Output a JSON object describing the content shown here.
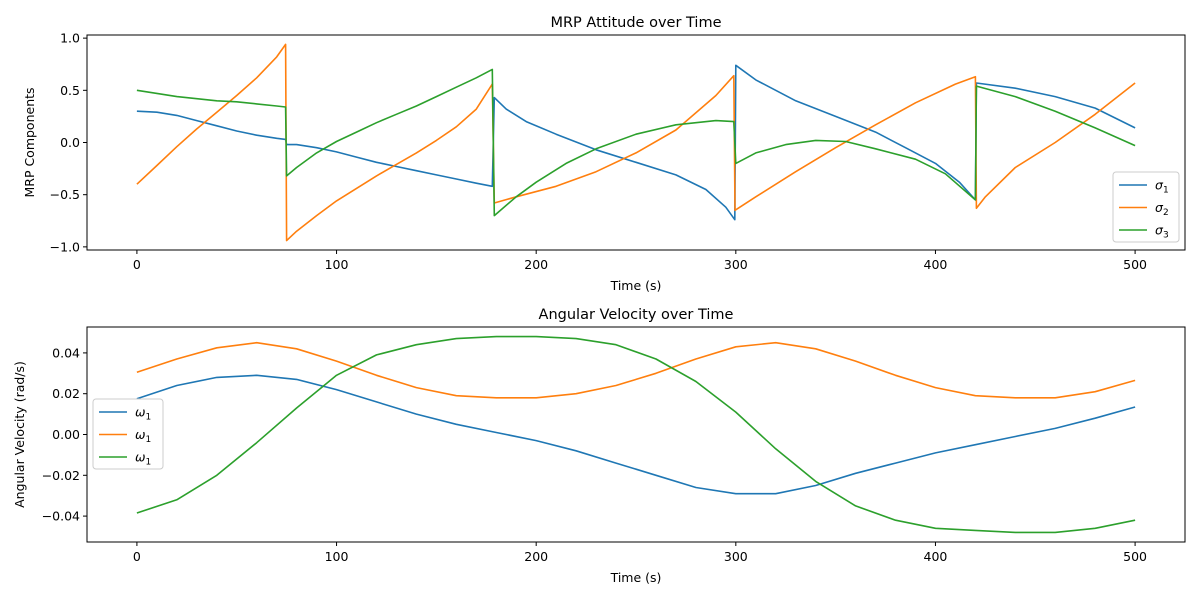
{
  "chart_data": [
    {
      "type": "line",
      "title": "MRP Attitude over Time",
      "xlabel": "Time (s)",
      "ylabel": "MRP Components",
      "xlim": [
        -25,
        525
      ],
      "ylim": [
        -1.03,
        1.03
      ],
      "xticks": [
        0,
        100,
        200,
        300,
        400,
        500
      ],
      "xtick_labels": [
        "0",
        "100",
        "200",
        "300",
        "400",
        "500"
      ],
      "yticks": [
        -1.0,
        -0.5,
        0.0,
        0.5,
        1.0
      ],
      "ytick_labels": [
        "−1.0",
        "−0.5",
        "0.0",
        "0.5",
        "1.0"
      ],
      "grid": false,
      "legend_position": "lower-right",
      "series": [
        {
          "name": "σ1",
          "base": "σ",
          "sub": "1",
          "color": "#1f77b4",
          "segments": [
            [
              [
                0,
                0.3
              ],
              [
                10,
                0.29
              ],
              [
                20,
                0.26
              ],
              [
                30,
                0.21
              ],
              [
                40,
                0.16
              ],
              [
                50,
                0.11
              ],
              [
                60,
                0.07
              ],
              [
                70,
                0.04
              ],
              [
                74.5,
                0.03
              ]
            ],
            [
              [
                75,
                -0.02
              ],
              [
                80,
                -0.02
              ],
              [
                90,
                -0.05
              ],
              [
                100,
                -0.09
              ],
              [
                110,
                -0.14
              ],
              [
                120,
                -0.19
              ],
              [
                130,
                -0.23
              ],
              [
                140,
                -0.27
              ],
              [
                150,
                -0.31
              ],
              [
                160,
                -0.35
              ],
              [
                170,
                -0.39
              ],
              [
                178,
                -0.42
              ]
            ],
            [
              [
                179,
                0.43
              ],
              [
                185,
                0.32
              ],
              [
                195,
                0.2
              ],
              [
                210,
                0.08
              ],
              [
                230,
                -0.07
              ],
              [
                250,
                -0.19
              ],
              [
                270,
                -0.31
              ],
              [
                285,
                -0.45
              ],
              [
                295,
                -0.62
              ],
              [
                299.5,
                -0.74
              ]
            ],
            [
              [
                300,
                0.74
              ],
              [
                310,
                0.6
              ],
              [
                330,
                0.4
              ],
              [
                350,
                0.25
              ],
              [
                370,
                0.1
              ],
              [
                385,
                -0.05
              ],
              [
                400,
                -0.2
              ],
              [
                412,
                -0.38
              ],
              [
                420,
                -0.55
              ]
            ],
            [
              [
                420.5,
                0.57
              ],
              [
                440,
                0.52
              ],
              [
                460,
                0.44
              ],
              [
                480,
                0.33
              ],
              [
                500,
                0.14
              ]
            ]
          ]
        },
        {
          "name": "σ2",
          "base": "σ",
          "sub": "2",
          "color": "#ff7f0e",
          "segments": [
            [
              [
                0,
                -0.4
              ],
              [
                10,
                -0.22
              ],
              [
                20,
                -0.04
              ],
              [
                30,
                0.13
              ],
              [
                40,
                0.29
              ],
              [
                50,
                0.45
              ],
              [
                60,
                0.62
              ],
              [
                70,
                0.82
              ],
              [
                74.5,
                0.94
              ]
            ],
            [
              [
                75,
                -0.94
              ],
              [
                80,
                -0.85
              ],
              [
                90,
                -0.7
              ],
              [
                100,
                -0.56
              ],
              [
                110,
                -0.44
              ],
              [
                120,
                -0.32
              ],
              [
                130,
                -0.21
              ],
              [
                140,
                -0.1
              ],
              [
                150,
                0.02
              ],
              [
                160,
                0.15
              ],
              [
                170,
                0.32
              ],
              [
                178,
                0.56
              ]
            ],
            [
              [
                179,
                -0.58
              ],
              [
                190,
                -0.52
              ],
              [
                210,
                -0.42
              ],
              [
                230,
                -0.28
              ],
              [
                250,
                -0.1
              ],
              [
                270,
                0.12
              ],
              [
                290,
                0.45
              ],
              [
                299,
                0.64
              ]
            ],
            [
              [
                299.6,
                -0.65
              ],
              [
                310,
                -0.52
              ],
              [
                330,
                -0.28
              ],
              [
                350,
                -0.05
              ],
              [
                370,
                0.17
              ],
              [
                390,
                0.38
              ],
              [
                410,
                0.56
              ],
              [
                420,
                0.63
              ]
            ],
            [
              [
                420.5,
                -0.63
              ],
              [
                425,
                -0.52
              ],
              [
                440,
                -0.24
              ],
              [
                460,
                0.0
              ],
              [
                480,
                0.27
              ],
              [
                500,
                0.57
              ]
            ]
          ]
        },
        {
          "name": "σ3",
          "base": "σ",
          "sub": "3",
          "color": "#2ca02c",
          "segments": [
            [
              [
                0,
                0.5
              ],
              [
                10,
                0.47
              ],
              [
                20,
                0.44
              ],
              [
                30,
                0.42
              ],
              [
                40,
                0.4
              ],
              [
                50,
                0.39
              ],
              [
                60,
                0.37
              ],
              [
                70,
                0.35
              ],
              [
                74.5,
                0.34
              ]
            ],
            [
              [
                75,
                -0.32
              ],
              [
                80,
                -0.24
              ],
              [
                90,
                -0.1
              ],
              [
                100,
                0.01
              ],
              [
                110,
                0.1
              ],
              [
                120,
                0.19
              ],
              [
                130,
                0.27
              ],
              [
                140,
                0.35
              ],
              [
                150,
                0.44
              ],
              [
                160,
                0.53
              ],
              [
                170,
                0.62
              ],
              [
                178,
                0.7
              ]
            ],
            [
              [
                179,
                -0.7
              ],
              [
                190,
                -0.52
              ],
              [
                200,
                -0.38
              ],
              [
                215,
                -0.2
              ],
              [
                230,
                -0.06
              ],
              [
                250,
                0.08
              ],
              [
                270,
                0.17
              ],
              [
                290,
                0.21
              ],
              [
                299,
                0.2
              ]
            ],
            [
              [
                300,
                -0.2
              ],
              [
                310,
                -0.1
              ],
              [
                325,
                -0.02
              ],
              [
                340,
                0.02
              ],
              [
                355,
                0.01
              ],
              [
                370,
                -0.06
              ],
              [
                390,
                -0.16
              ],
              [
                405,
                -0.3
              ],
              [
                420,
                -0.55
              ]
            ],
            [
              [
                420.5,
                0.54
              ],
              [
                440,
                0.44
              ],
              [
                460,
                0.3
              ],
              [
                480,
                0.14
              ],
              [
                500,
                -0.03
              ]
            ]
          ]
        }
      ]
    },
    {
      "type": "line",
      "title": "Angular Velocity over Time",
      "xlabel": "Time (s)",
      "ylabel": "Angular Velocity (rad/s)",
      "xlim": [
        -25,
        525
      ],
      "ylim": [
        -0.0527,
        0.0527
      ],
      "xticks": [
        0,
        100,
        200,
        300,
        400,
        500
      ],
      "xtick_labels": [
        "0",
        "100",
        "200",
        "300",
        "400",
        "500"
      ],
      "yticks": [
        -0.04,
        -0.02,
        0.0,
        0.02,
        0.04
      ],
      "ytick_labels": [
        "−0.04",
        "−0.02",
        "0.00",
        "0.02",
        "0.04"
      ],
      "grid": false,
      "legend_position": "center-left",
      "series": [
        {
          "name": "ω1",
          "base": "ω",
          "sub": "1",
          "color": "#1f77b4",
          "segments": [
            [
              [
                0,
                0.0175
              ],
              [
                20,
                0.024
              ],
              [
                40,
                0.028
              ],
              [
                60,
                0.029
              ],
              [
                80,
                0.027
              ],
              [
                100,
                0.022
              ],
              [
                120,
                0.016
              ],
              [
                140,
                0.01
              ],
              [
                160,
                0.005
              ],
              [
                180,
                0.001
              ],
              [
                200,
                -0.003
              ],
              [
                220,
                -0.008
              ],
              [
                240,
                -0.014
              ],
              [
                260,
                -0.02
              ],
              [
                280,
                -0.026
              ],
              [
                300,
                -0.029
              ],
              [
                320,
                -0.029
              ],
              [
                340,
                -0.025
              ],
              [
                360,
                -0.019
              ],
              [
                380,
                -0.014
              ],
              [
                400,
                -0.009
              ],
              [
                420,
                -0.005
              ],
              [
                440,
                -0.001
              ],
              [
                460,
                0.003
              ],
              [
                480,
                0.008
              ],
              [
                500,
                0.0135
              ]
            ]
          ]
        },
        {
          "name": "ω1",
          "base": "ω",
          "sub": "1",
          "color": "#ff7f0e",
          "segments": [
            [
              [
                0,
                0.0305
              ],
              [
                20,
                0.037
              ],
              [
                40,
                0.0425
              ],
              [
                60,
                0.045
              ],
              [
                80,
                0.042
              ],
              [
                100,
                0.036
              ],
              [
                120,
                0.029
              ],
              [
                140,
                0.023
              ],
              [
                160,
                0.019
              ],
              [
                180,
                0.018
              ],
              [
                200,
                0.018
              ],
              [
                220,
                0.02
              ],
              [
                240,
                0.024
              ],
              [
                260,
                0.03
              ],
              [
                280,
                0.037
              ],
              [
                300,
                0.043
              ],
              [
                320,
                0.045
              ],
              [
                340,
                0.042
              ],
              [
                360,
                0.036
              ],
              [
                380,
                0.029
              ],
              [
                400,
                0.023
              ],
              [
                420,
                0.019
              ],
              [
                440,
                0.018
              ],
              [
                460,
                0.018
              ],
              [
                480,
                0.021
              ],
              [
                500,
                0.0265
              ]
            ]
          ]
        },
        {
          "name": "ω1",
          "base": "ω",
          "sub": "1",
          "color": "#2ca02c",
          "segments": [
            [
              [
                0,
                -0.0385
              ],
              [
                20,
                -0.032
              ],
              [
                40,
                -0.02
              ],
              [
                60,
                -0.004
              ],
              [
                80,
                0.013
              ],
              [
                100,
                0.029
              ],
              [
                120,
                0.039
              ],
              [
                140,
                0.044
              ],
              [
                160,
                0.047
              ],
              [
                180,
                0.048
              ],
              [
                200,
                0.048
              ],
              [
                220,
                0.047
              ],
              [
                240,
                0.044
              ],
              [
                260,
                0.037
              ],
              [
                280,
                0.026
              ],
              [
                300,
                0.011
              ],
              [
                320,
                -0.007
              ],
              [
                340,
                -0.023
              ],
              [
                360,
                -0.035
              ],
              [
                380,
                -0.042
              ],
              [
                400,
                -0.046
              ],
              [
                420,
                -0.047
              ],
              [
                440,
                -0.048
              ],
              [
                460,
                -0.048
              ],
              [
                480,
                -0.046
              ],
              [
                500,
                -0.042
              ]
            ]
          ]
        }
      ]
    }
  ]
}
